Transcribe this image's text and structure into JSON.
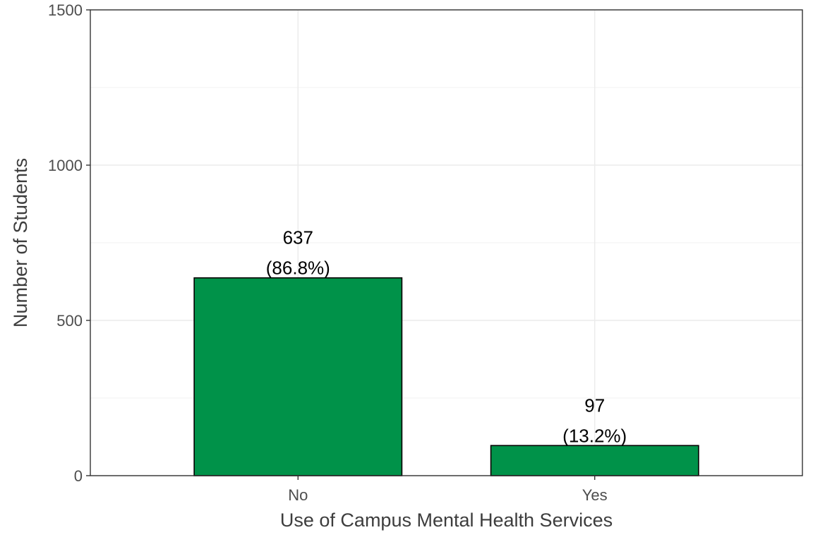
{
  "chart_data": {
    "type": "bar",
    "categories": [
      "No",
      "Yes"
    ],
    "values": [
      637,
      97
    ],
    "data_labels": [
      {
        "count": "637",
        "percent": "(86.8%)"
      },
      {
        "count": "97",
        "percent": "(13.2%)"
      }
    ],
    "xlabel": "Use of Campus Mental Health Services",
    "ylabel": "Number of Students",
    "ylim": [
      0,
      1500
    ],
    "yticks": [
      0,
      500,
      1000,
      1500
    ],
    "ytick_labels": [
      "0",
      "500",
      "1000",
      "1500"
    ],
    "grid": true,
    "legend": "none",
    "bar_color": "#009249",
    "bar_border_color": "#000000"
  }
}
